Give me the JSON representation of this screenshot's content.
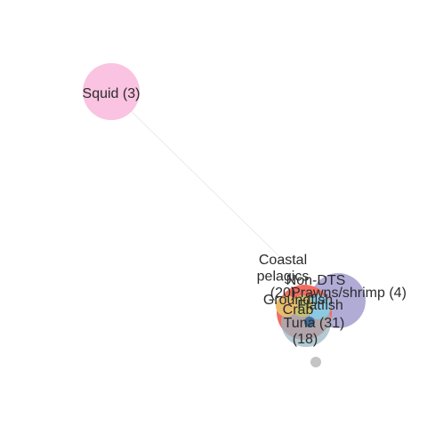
{
  "chart_data": {
    "type": "network",
    "title": "",
    "nodes": [
      {
        "id": "squid",
        "label": "Squid (3)",
        "color": "#f9c3e1"
      },
      {
        "id": "prawns",
        "label": "Prawns/shrimp (4)",
        "color": "#b1acd6"
      },
      {
        "id": "coastal_pelagics",
        "label": "Coastal pelagics (20)",
        "color": "#f26d61"
      },
      {
        "id": "non_dts",
        "label": "Non-DTS",
        "color": "#9bb8c4"
      },
      {
        "id": "crab",
        "label": "Crab",
        "color": "#8cc9e3"
      },
      {
        "id": "flatfish",
        "label": "Flatfish",
        "color": "#e8bc6e"
      },
      {
        "id": "groundfish",
        "label": "Groundfish",
        "color": "#c8c36a"
      },
      {
        "id": "tuna",
        "label": "Tuna (31)",
        "color": "#3f6f9a"
      },
      {
        "id": "other",
        "label": "(18)",
        "color": "#c4c4c4"
      }
    ],
    "edges": [
      {
        "source": "squid",
        "target": "coastal_pelagics"
      }
    ]
  }
}
